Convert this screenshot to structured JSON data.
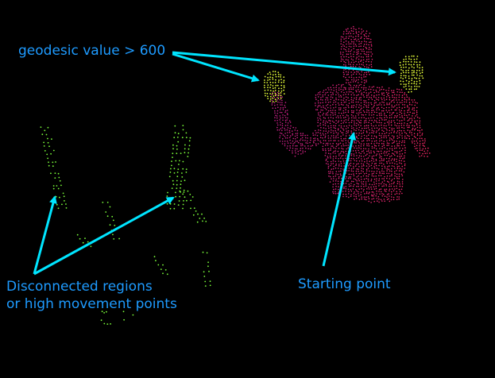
{
  "labels": {
    "geodesic": "geodesic value > 600",
    "disconnected_line1": "Disconnected regions",
    "disconnected_line2": "or high movement points",
    "starting": "Starting point"
  },
  "colors": {
    "background": "#000000",
    "annotation": "#00e5ff",
    "label_text": "#1e9bff",
    "body_points_magenta": "#c8208c",
    "body_points_pink": "#ff2a6a",
    "hand_points_yellow": "#e8ff3a",
    "disconnected_points_green": "#7cff3a"
  }
}
